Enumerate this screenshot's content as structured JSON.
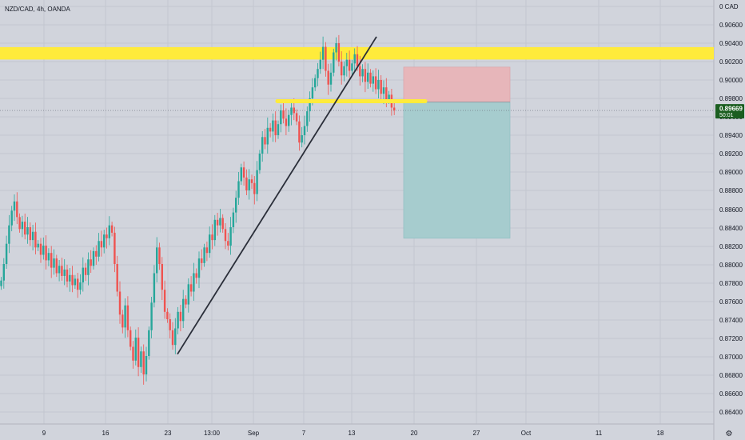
{
  "chart_data": {
    "type": "candlestick",
    "title": "NZD/CAD, 4h, OANDA",
    "currency": "CAD",
    "price_label": "0.89669",
    "countdown_label": "50:01",
    "ylim": [
      0.8632,
      0.909
    ],
    "y_ticks": [
      "0.90600",
      "0.90400",
      "0.90200",
      "0.90000",
      "0.89800",
      "0.89600",
      "0.89400",
      "0.89200",
      "0.89000",
      "0.88800",
      "0.88600",
      "0.88400",
      "0.88200",
      "0.88000",
      "0.87800",
      "0.87600",
      "0.87400",
      "0.87200",
      "0.87000",
      "0.86800",
      "0.86600",
      "0.86400"
    ],
    "x_ticks": [
      "9",
      "16",
      "23",
      "13:00",
      "Sep",
      "7",
      "13",
      "20",
      "27",
      "Oct",
      "11",
      "18"
    ],
    "colors": {
      "up": "#26a69a",
      "down": "#ef5350",
      "bg": "#d1d4dc",
      "grid": "#c3c6cf",
      "text": "#131722",
      "last_price": "#1b5e20",
      "zone_yellow": "#ffeb3b",
      "risk": "#e7b6ba",
      "reward": "#a6ccce"
    },
    "closes": [
      0.8782,
      0.88,
      0.8822,
      0.8842,
      0.8858,
      0.8868,
      0.8851,
      0.8838,
      0.8846,
      0.8832,
      0.884,
      0.8826,
      0.8835,
      0.8818,
      0.8822,
      0.881,
      0.882,
      0.8804,
      0.8812,
      0.8796,
      0.8806,
      0.879,
      0.8798,
      0.8787,
      0.8794,
      0.8781,
      0.8788,
      0.8777,
      0.8784,
      0.8772,
      0.878,
      0.8796,
      0.8788,
      0.8805,
      0.8798,
      0.8814,
      0.8808,
      0.8825,
      0.8818,
      0.8832,
      0.8828,
      0.8842,
      0.8834,
      0.88,
      0.877,
      0.8745,
      0.8731,
      0.8755,
      0.8728,
      0.871,
      0.8695,
      0.872,
      0.8688,
      0.8705,
      0.868,
      0.87,
      0.8728,
      0.8758,
      0.879,
      0.8818,
      0.88,
      0.8772,
      0.8748,
      0.874,
      0.8728,
      0.8712,
      0.873,
      0.8748,
      0.8738,
      0.8762,
      0.8756,
      0.8778,
      0.877,
      0.879,
      0.8785,
      0.8806,
      0.8801,
      0.8818,
      0.8812,
      0.8832,
      0.8826,
      0.8848,
      0.8842,
      0.885,
      0.8838,
      0.8825,
      0.882,
      0.884,
      0.8856,
      0.8872,
      0.889,
      0.8905,
      0.8894,
      0.888,
      0.8892,
      0.8888,
      0.8876,
      0.8902,
      0.892,
      0.8938,
      0.893,
      0.8948,
      0.8944,
      0.8956,
      0.894,
      0.8952,
      0.8967,
      0.8958,
      0.895,
      0.8962,
      0.897,
      0.8964,
      0.8955,
      0.8932,
      0.894,
      0.895,
      0.8966,
      0.898,
      0.8992,
      0.9002,
      0.9012,
      0.9022,
      0.9036,
      0.901,
      0.8995,
      0.9008,
      0.903,
      0.904,
      0.902,
      0.9005,
      0.9015,
      0.9022,
      0.901,
      0.9018,
      0.9028,
      0.9015,
      0.9004,
      0.9012,
      0.8998,
      0.9008,
      0.8996,
      0.9004,
      0.899,
      0.9,
      0.8985,
      0.8992,
      0.8978,
      0.8984,
      0.897,
      0.8967
    ],
    "trendline": [
      [
        0,
        0.8702
      ],
      [
        0,
        0.9047
      ]
    ],
    "resistance_zone": [
      0.9024,
      0.9034
    ],
    "support_line": 0.8977,
    "position": {
      "entry": 0.8976,
      "stop": 0.9014,
      "target": 0.8828
    }
  }
}
